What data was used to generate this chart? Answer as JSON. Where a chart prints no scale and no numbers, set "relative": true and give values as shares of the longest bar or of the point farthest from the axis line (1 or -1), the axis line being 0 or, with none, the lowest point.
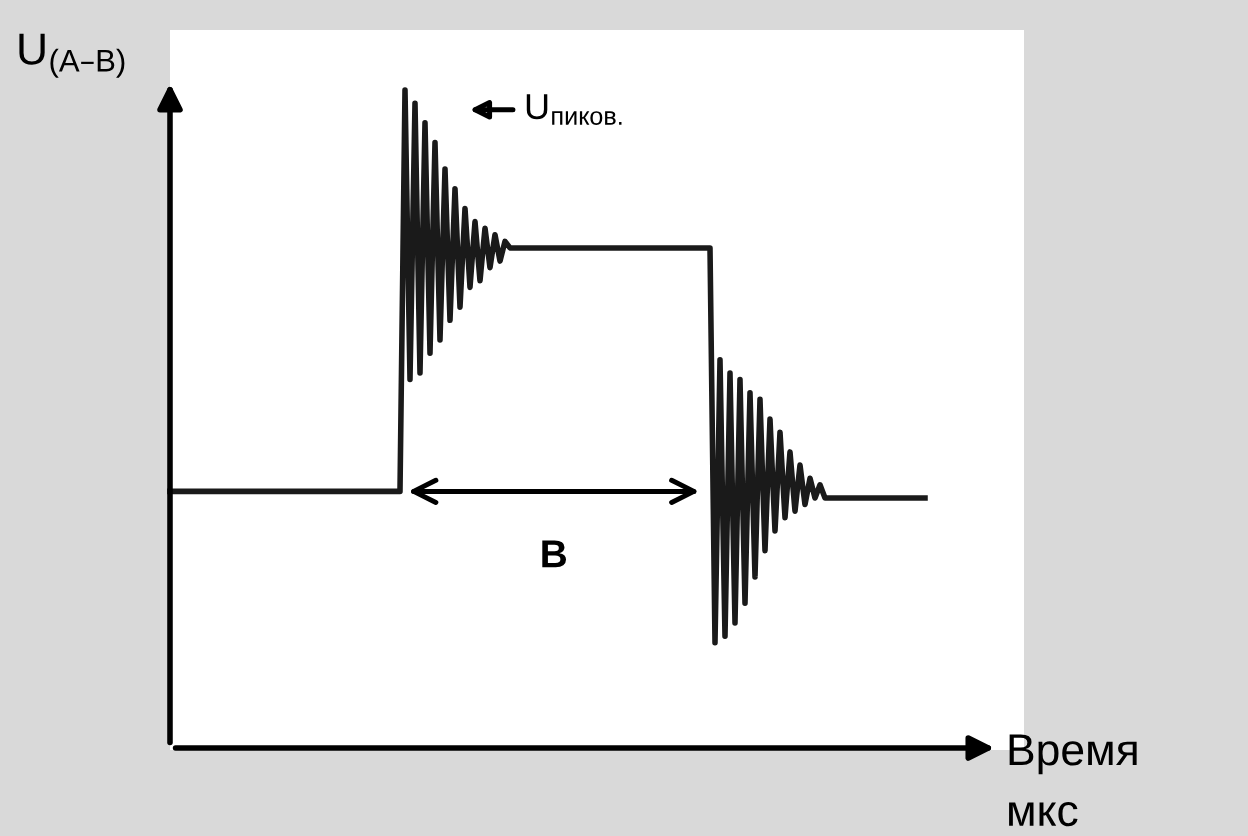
{
  "chart_data": {
    "type": "line",
    "relative": true,
    "color": "#1a1a1a",
    "xlabel": "Время\nмкс",
    "ylabel": "U$_{(A–B)}$",
    "categories": [
      null,
      null,
      null,
      null,
      null,
      null,
      null,
      null,
      null,
      null,
      null,
      null,
      null,
      null,
      null,
      null,
      null,
      null,
      null,
      null,
      null,
      null,
      null,
      null,
      null,
      null,
      null,
      null,
      null,
      null,
      null,
      null,
      null,
      null,
      null,
      null,
      null,
      null,
      null,
      null,
      null,
      null,
      null,
      null,
      null,
      null,
      null,
      null,
      null,
      null,
      null,
      null,
      null,
      null,
      null,
      null,
      null,
      null,
      null,
      null,
      null,
      null,
      null,
      null,
      null,
      null,
      null,
      null,
      null,
      null,
      null,
      null,
      null,
      null,
      null,
      null,
      null,
      null,
      null,
      null,
      null,
      null,
      null,
      null,
      null,
      null,
      null,
      null,
      null,
      null,
      null,
      null,
      null,
      null,
      null,
      null,
      null,
      null,
      null,
      null,
      null,
      null,
      null,
      null,
      null,
      null,
      null,
      null,
      null,
      null,
      null,
      null,
      null,
      null,
      null,
      null,
      null,
      null,
      null,
      null,
      null,
      null,
      null,
      null,
      null,
      null,
      null,
      null,
      null,
      null,
      null,
      null,
      null,
      null,
      null,
      null,
      null,
      null,
      null,
      null,
      null,
      null,
      null,
      null,
      null,
      null,
      null,
      null,
      null,
      null,
      null,
      null
    ],
    "values": [
      0.39,
      0.39,
      0.39,
      0.39,
      0.39,
      0.39,
      0.39,
      0.39,
      0.39,
      0.39,
      0.39,
      0.39,
      0.39,
      0.39,
      0.39,
      0.39,
      0.39,
      0.39,
      0.39,
      0.39,
      0.39,
      0.39,
      0.39,
      0.39,
      0.39,
      0.39,
      0.39,
      0.39,
      0.39,
      0.39,
      0.39,
      0.39,
      0.39,
      0.39,
      0.39,
      0.39,
      0.39,
      0.39,
      0.39,
      0.39,
      0.39,
      0.39,
      0.39,
      0.39,
      0.39,
      0.39,
      0.39,
      1.0,
      0.56,
      0.98,
      0.57,
      0.95,
      0.6,
      0.92,
      0.62,
      0.88,
      0.65,
      0.85,
      0.67,
      0.82,
      0.7,
      0.8,
      0.71,
      0.79,
      0.73,
      0.78,
      0.74,
      0.77,
      0.76,
      0.76,
      0.76,
      0.76,
      0.76,
      0.76,
      0.76,
      0.76,
      0.76,
      0.76,
      0.76,
      0.76,
      0.76,
      0.76,
      0.76,
      0.76,
      0.76,
      0.76,
      0.76,
      0.76,
      0.76,
      0.76,
      0.76,
      0.76,
      0.76,
      0.76,
      0.76,
      0.76,
      0.76,
      0.76,
      0.76,
      0.76,
      0.76,
      0.76,
      0.76,
      0.76,
      0.76,
      0.76,
      0.76,
      0.76,
      0.76,
      0.16,
      0.59,
      0.17,
      0.57,
      0.19,
      0.56,
      0.22,
      0.54,
      0.26,
      0.53,
      0.3,
      0.5,
      0.33,
      0.48,
      0.35,
      0.45,
      0.36,
      0.43,
      0.37,
      0.41,
      0.38,
      0.4,
      0.38,
      0.38,
      0.38,
      0.38,
      0.38,
      0.38,
      0.38,
      0.38,
      0.38,
      0.38,
      0.38,
      0.38,
      0.38,
      0.38,
      0.38,
      0.38,
      0.38,
      0.38,
      0.38,
      0.38,
      0.38
    ],
    "annotations": [
      "U$_{пиков.}$",
      "B"
    ]
  }
}
